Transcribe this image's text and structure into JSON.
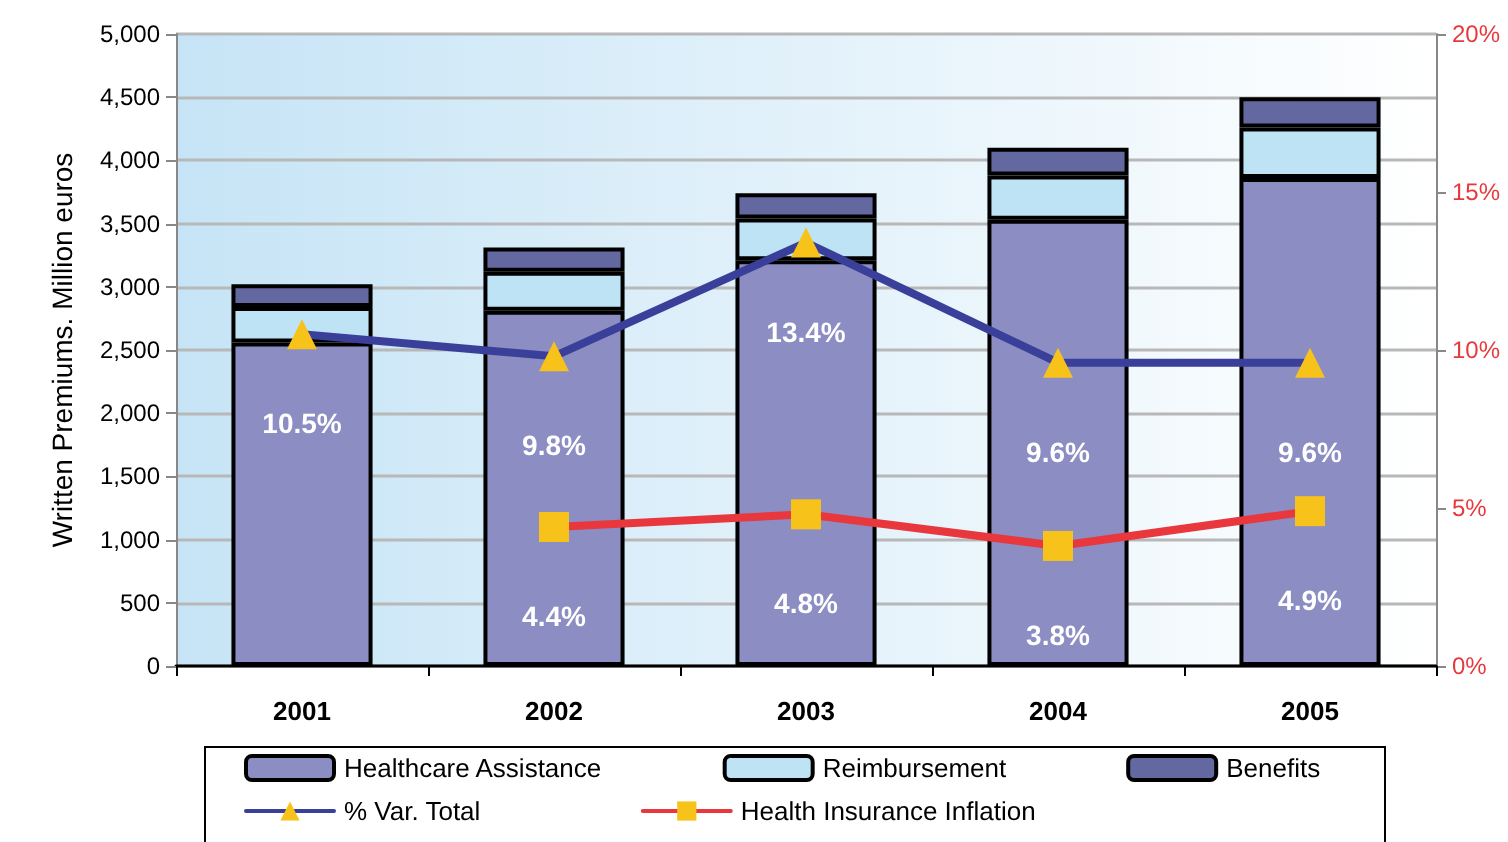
{
  "chart_data": {
    "type": "bar",
    "ylabel": "Written Premiums. Million euros",
    "categories": [
      "2001",
      "2002",
      "2003",
      "2004",
      "2005"
    ],
    "stacked": true,
    "grid": "y",
    "legend": "bottom",
    "ylim": [
      0,
      5000
    ],
    "yticks": [
      {
        "value": 0,
        "label": "0"
      },
      {
        "value": 500,
        "label": "500"
      },
      {
        "value": 1000,
        "label": "1,000"
      },
      {
        "value": 1500,
        "label": "1,500"
      },
      {
        "value": 2000,
        "label": "2,000"
      },
      {
        "value": 2500,
        "label": "2,500"
      },
      {
        "value": 3000,
        "label": "3,000"
      },
      {
        "value": 3500,
        "label": "3,500"
      },
      {
        "value": 4000,
        "label": "4,000"
      },
      {
        "value": 4500,
        "label": "4,500"
      },
      {
        "value": 5000,
        "label": "5,000"
      }
    ],
    "y2lim": [
      0,
      20
    ],
    "y2ticks": [
      {
        "value": 0,
        "label": "0%"
      },
      {
        "value": 5,
        "label": "5%"
      },
      {
        "value": 10,
        "label": "10%"
      },
      {
        "value": 15,
        "label": "15%"
      },
      {
        "value": 20,
        "label": "20%"
      }
    ],
    "series": [
      {
        "name": "Healthcare Assistance",
        "color": "#8b8dc3",
        "values": [
          2560,
          2810,
          3210,
          3530,
          3860
        ]
      },
      {
        "name": "Reimbursement",
        "color": "#bde3f4",
        "values": [
          280,
          310,
          330,
          350,
          400
        ]
      },
      {
        "name": "Benefits",
        "color": "#6468a0",
        "values": [
          180,
          190,
          200,
          220,
          240
        ]
      },
      {
        "name": "% Var. Total",
        "type": "line",
        "axis": "y2",
        "color": "#3a3f9a",
        "marker": "triangle",
        "line_style": "solid",
        "values": [
          10.5,
          9.8,
          13.4,
          9.6,
          9.6
        ],
        "value_labels": [
          "10.5%",
          "9.8%",
          "13.4%",
          "9.6%",
          "9.6%"
        ]
      },
      {
        "name": "Health Insurance Inflation",
        "type": "line",
        "axis": "y2",
        "color": "#e8383d",
        "marker": "square",
        "line_style": "solid",
        "values": [
          null,
          4.4,
          4.8,
          3.8,
          4.9
        ],
        "value_labels": [
          null,
          "4.4%",
          "4.8%",
          "3.8%",
          "4.9%"
        ]
      }
    ]
  }
}
